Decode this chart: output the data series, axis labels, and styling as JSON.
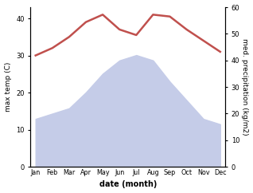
{
  "months": [
    "Jan",
    "Feb",
    "Mar",
    "Apr",
    "May",
    "Jun",
    "Jul",
    "Aug",
    "Sep",
    "Oct",
    "Nov",
    "Dec"
  ],
  "month_positions": [
    0,
    1,
    2,
    3,
    4,
    5,
    6,
    7,
    8,
    9,
    10,
    11
  ],
  "precipitation": [
    13,
    14.5,
    16,
    20.5,
    25.5,
    29,
    30.5,
    29,
    23,
    18,
    13,
    11.5
  ],
  "max_temp": [
    30,
    32,
    35,
    39,
    41,
    37,
    35.5,
    41,
    40.5,
    37,
    34,
    31
  ],
  "temp_color": "#c0504d",
  "precip_fill_color": "#c5cce8",
  "left_ylabel": "max temp (C)",
  "right_ylabel": "med. precipitation (kg/m2)",
  "xlabel": "date (month)",
  "ylim_left": [
    0,
    43
  ],
  "ylim_right": [
    0,
    60
  ],
  "left_yticks": [
    0,
    10,
    20,
    30,
    40
  ],
  "right_yticks": [
    0,
    10,
    20,
    30,
    40,
    50,
    60
  ],
  "bg_color": "#ffffff",
  "line_width": 1.8
}
